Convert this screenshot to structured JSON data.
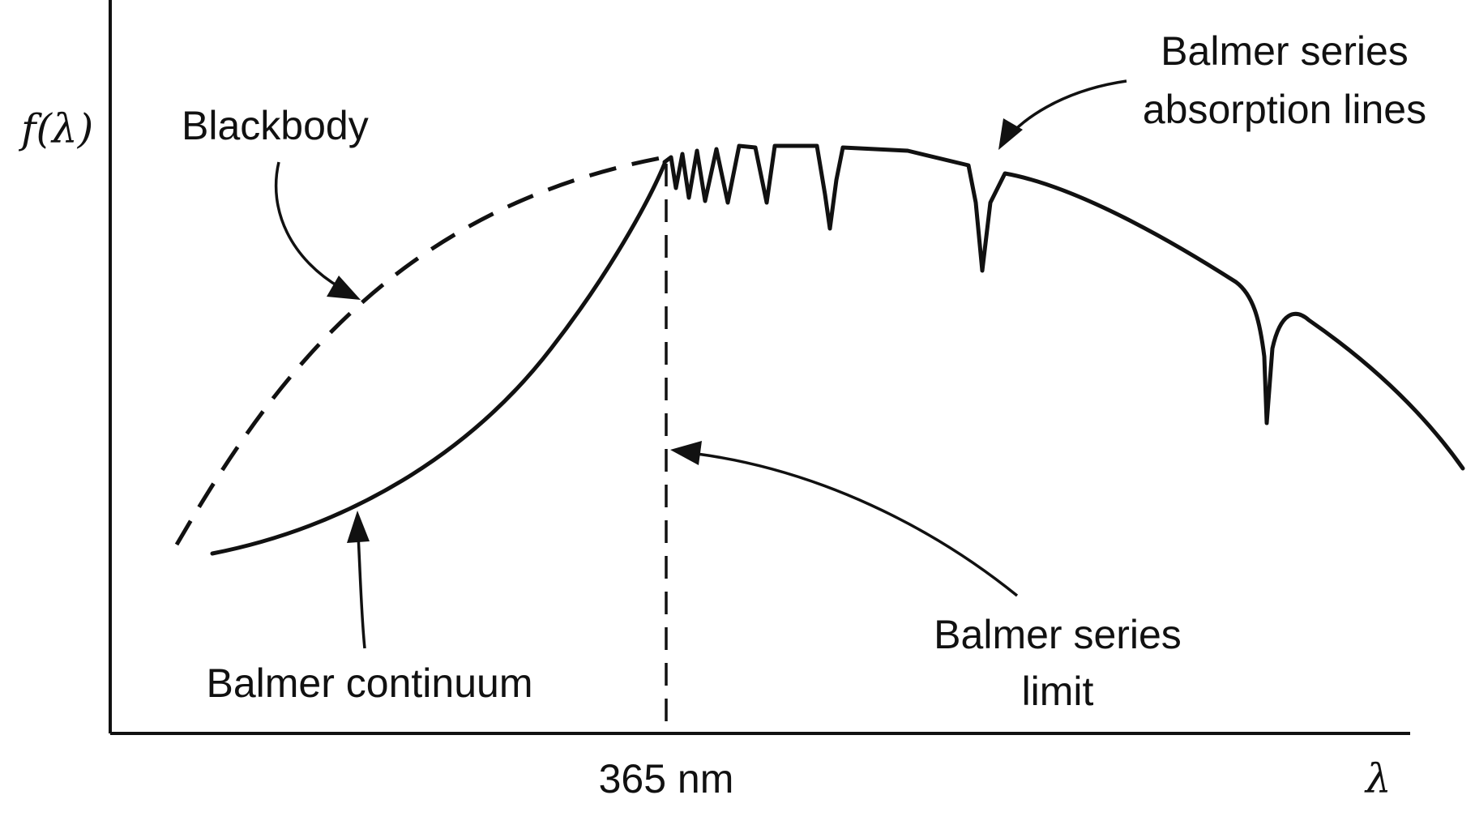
{
  "axes": {
    "y_label": "f(λ)",
    "x_label": "λ",
    "x_tick": "365 nm"
  },
  "labels": {
    "blackbody": "Blackbody",
    "absorption_line1": "Balmer series",
    "absorption_line2": "absorption lines",
    "continuum": "Balmer continuum",
    "limit_line1": "Balmer series",
    "limit_line2": "limit"
  }
}
